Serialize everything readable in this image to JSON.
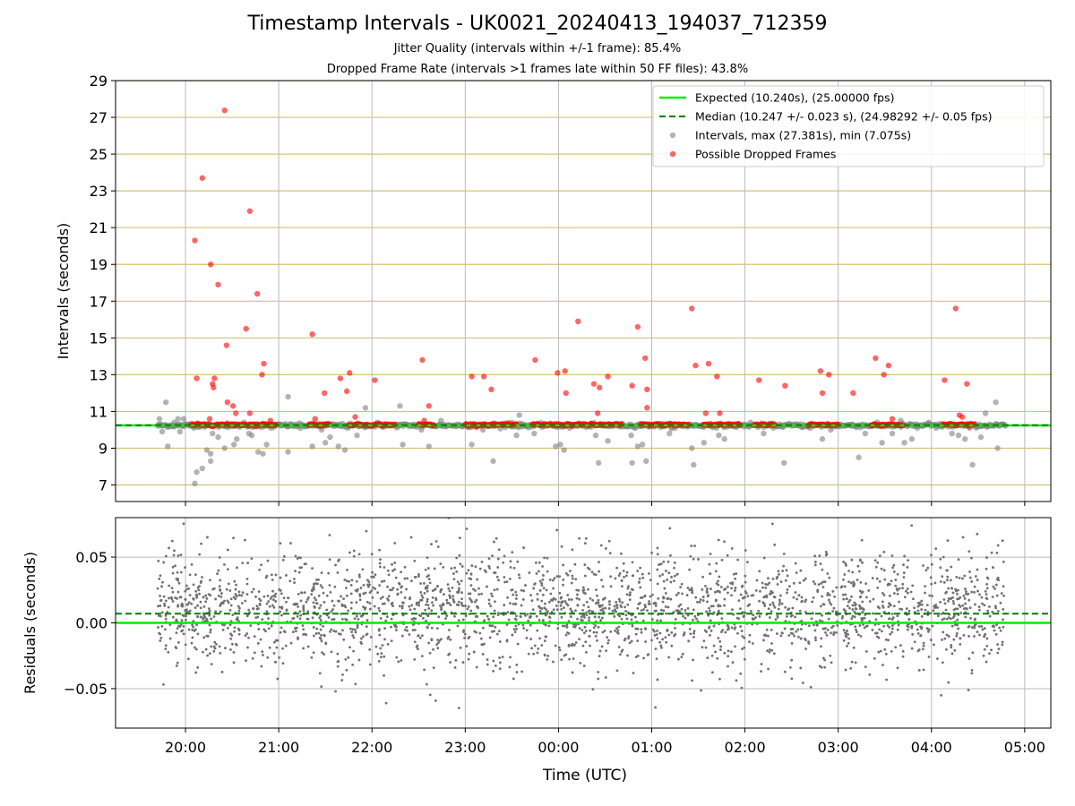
{
  "chart_data": [
    {
      "type": "scatter",
      "title": "Timestamp Intervals - UK0021_20240413_194037_712359",
      "subtitle_lines": [
        "Jitter Quality (intervals within +/-1 frame): 85.4%",
        "Dropped Frame Rate (intervals >1 frames late within 50 FF files): 43.8%"
      ],
      "xlabel": "",
      "ylabel": "Intervals (seconds)",
      "x_axis": {
        "kind": "time",
        "unit": "hours, continuous from 20:00 UTC (24 = 00:00 next day)",
        "range": [
          19.25,
          29.28
        ],
        "ticks": [
          20,
          21,
          22,
          23,
          24,
          25,
          26,
          27,
          28,
          29
        ],
        "tick_labels": [
          "20:00",
          "21:00",
          "22:00",
          "23:00",
          "00:00",
          "01:00",
          "02:00",
          "03:00",
          "04:00",
          "05:00"
        ]
      },
      "ylim": [
        6.1,
        29
      ],
      "y_ticks": [
        7,
        9,
        11,
        13,
        15,
        17,
        19,
        21,
        23,
        25,
        27,
        29
      ],
      "grid": {
        "horizontal": true,
        "horizontal_color": "#d4c27a",
        "vertical": true,
        "vertical_color": "#bbbbbb"
      },
      "legend": {
        "placement": "top-right",
        "entries": [
          "Expected (10.240s), (25.00000 fps)",
          "Median (10.247 +/- 0.023 s), (24.98292 +/- 0.05 fps)",
          "Intervals, max (27.381s), min (7.075s)",
          "Possible Dropped Frames"
        ]
      },
      "reference_lines": [
        {
          "name": "Expected (10.240s), (25.00000 fps)",
          "y": 10.24,
          "color": "#00ee00",
          "style": "solid"
        },
        {
          "name": "Median (10.247 +/- 0.023 s), (24.98292 +/- 0.05 fps)",
          "y": 10.247,
          "color": "#008000",
          "style": "dashed"
        }
      ],
      "series": [
        {
          "name": "Intervals, max (27.381s), min (7.075s)",
          "color": "#808080",
          "base_interval": 10.24,
          "x_range": [
            19.7,
            28.8
          ],
          "outliers": [
            [
              19.72,
              10.6
            ],
            [
              19.75,
              9.9
            ],
            [
              19.79,
              11.5
            ],
            [
              19.81,
              9.1
            ],
            [
              19.88,
              10.4
            ],
            [
              19.92,
              10.6
            ],
            [
              19.94,
              9.9
            ],
            [
              19.98,
              10.6
            ],
            [
              20.08,
              10.3
            ],
            [
              20.1,
              7.08
            ],
            [
              20.12,
              7.7
            ],
            [
              20.18,
              7.9
            ],
            [
              20.23,
              8.9
            ],
            [
              20.27,
              8.3
            ],
            [
              20.27,
              8.7
            ],
            [
              20.29,
              9.8
            ],
            [
              20.35,
              9.6
            ],
            [
              20.42,
              9.0
            ],
            [
              20.52,
              9.2
            ],
            [
              20.55,
              9.5
            ],
            [
              20.63,
              10.4
            ],
            [
              20.68,
              9.8
            ],
            [
              20.71,
              9.7
            ],
            [
              20.78,
              8.8
            ],
            [
              20.83,
              8.7
            ],
            [
              20.87,
              9.2
            ],
            [
              20.92,
              10.1
            ],
            [
              21.02,
              10.3
            ],
            [
              21.1,
              11.8
            ],
            [
              21.1,
              8.8
            ],
            [
              21.23,
              10.1
            ],
            [
              21.36,
              9.1
            ],
            [
              21.46,
              10.0
            ],
            [
              21.5,
              9.3
            ],
            [
              21.55,
              9.6
            ],
            [
              21.64,
              9.1
            ],
            [
              21.71,
              8.9
            ],
            [
              21.74,
              10.1
            ],
            [
              21.84,
              9.7
            ],
            [
              21.93,
              11.2
            ],
            [
              22.06,
              10.4
            ],
            [
              22.3,
              11.3
            ],
            [
              22.33,
              9.2
            ],
            [
              22.53,
              10.0
            ],
            [
              22.61,
              9.1
            ],
            [
              22.74,
              10.5
            ],
            [
              23.07,
              9.2
            ],
            [
              23.19,
              10.0
            ],
            [
              23.3,
              8.3
            ],
            [
              23.5,
              10.4
            ],
            [
              23.55,
              9.7
            ],
            [
              23.58,
              10.8
            ],
            [
              23.74,
              9.8
            ],
            [
              23.97,
              9.1
            ],
            [
              24.02,
              9.2
            ],
            [
              24.06,
              8.9
            ],
            [
              24.12,
              10.1
            ],
            [
              24.4,
              9.7
            ],
            [
              24.43,
              8.2
            ],
            [
              24.53,
              9.4
            ],
            [
              24.78,
              9.7
            ],
            [
              24.79,
              8.2
            ],
            [
              24.85,
              9.1
            ],
            [
              24.9,
              9.2
            ],
            [
              24.94,
              8.3
            ],
            [
              25.19,
              9.8
            ],
            [
              25.25,
              10.1
            ],
            [
              25.43,
              9.0
            ],
            [
              25.45,
              8.1
            ],
            [
              25.56,
              9.3
            ],
            [
              25.72,
              9.7
            ],
            [
              25.78,
              9.5
            ],
            [
              26.06,
              10.4
            ],
            [
              26.2,
              9.8
            ],
            [
              26.42,
              8.2
            ],
            [
              26.7,
              10.1
            ],
            [
              26.83,
              9.5
            ],
            [
              26.92,
              10.0
            ],
            [
              27.15,
              10.3
            ],
            [
              27.22,
              8.5
            ],
            [
              27.29,
              9.8
            ],
            [
              27.47,
              9.3
            ],
            [
              27.58,
              9.8
            ],
            [
              27.67,
              10.5
            ],
            [
              27.71,
              9.3
            ],
            [
              27.79,
              9.5
            ],
            [
              27.85,
              10.1
            ],
            [
              27.97,
              10.4
            ],
            [
              28.05,
              10.1
            ],
            [
              28.22,
              9.8
            ],
            [
              28.29,
              9.7
            ],
            [
              28.36,
              9.5
            ],
            [
              28.41,
              10.1
            ],
            [
              28.44,
              8.1
            ],
            [
              28.53,
              9.6
            ],
            [
              28.58,
              10.9
            ],
            [
              28.69,
              11.5
            ],
            [
              28.71,
              9.0
            ],
            [
              28.76,
              10.3
            ]
          ]
        },
        {
          "name": "Possible Dropped Frames",
          "color": "#ff0000",
          "base_interval": 10.28,
          "clusters": [
            [
              20.06,
              20.98
            ],
            [
              21.32,
              21.55
            ],
            [
              21.75,
              22.25
            ],
            [
              22.5,
              22.67
            ],
            [
              23.0,
              23.55
            ],
            [
              23.72,
              24.68
            ],
            [
              24.88,
              25.4
            ],
            [
              25.55,
              25.95
            ],
            [
              26.1,
              26.32
            ],
            [
              26.68,
              27.0
            ],
            [
              27.35,
              27.7
            ],
            [
              28.12,
              28.47
            ]
          ],
          "outliers": [
            [
              20.1,
              20.3
            ],
            [
              20.12,
              12.8
            ],
            [
              20.18,
              23.7
            ],
            [
              20.26,
              10.6
            ],
            [
              20.27,
              19.0
            ],
            [
              20.29,
              12.5
            ],
            [
              20.3,
              12.3
            ],
            [
              20.31,
              12.8
            ],
            [
              20.35,
              17.9
            ],
            [
              20.42,
              27.38
            ],
            [
              20.44,
              14.6
            ],
            [
              20.45,
              11.5
            ],
            [
              20.51,
              11.3
            ],
            [
              20.54,
              10.9
            ],
            [
              20.65,
              15.5
            ],
            [
              20.69,
              10.9
            ],
            [
              20.69,
              21.9
            ],
            [
              20.77,
              17.4
            ],
            [
              20.82,
              13.0
            ],
            [
              20.84,
              13.6
            ],
            [
              20.91,
              10.5
            ],
            [
              21.36,
              15.2
            ],
            [
              21.39,
              10.6
            ],
            [
              21.49,
              12.0
            ],
            [
              21.66,
              12.8
            ],
            [
              21.73,
              12.1
            ],
            [
              21.76,
              13.1
            ],
            [
              21.82,
              10.7
            ],
            [
              22.03,
              12.7
            ],
            [
              22.54,
              13.8
            ],
            [
              22.56,
              10.5
            ],
            [
              22.61,
              11.3
            ],
            [
              23.07,
              12.9
            ],
            [
              23.2,
              12.9
            ],
            [
              23.28,
              12.2
            ],
            [
              23.75,
              13.8
            ],
            [
              23.99,
              13.1
            ],
            [
              24.07,
              13.2
            ],
            [
              24.08,
              12.0
            ],
            [
              24.21,
              15.9
            ],
            [
              24.38,
              12.5
            ],
            [
              24.42,
              10.9
            ],
            [
              24.44,
              12.3
            ],
            [
              24.53,
              12.9
            ],
            [
              24.79,
              12.4
            ],
            [
              24.85,
              15.6
            ],
            [
              24.93,
              13.9
            ],
            [
              24.95,
              12.2
            ],
            [
              24.95,
              11.2
            ],
            [
              25.43,
              16.6
            ],
            [
              25.47,
              13.5
            ],
            [
              25.58,
              10.9
            ],
            [
              25.61,
              13.6
            ],
            [
              25.7,
              12.9
            ],
            [
              25.73,
              10.9
            ],
            [
              26.15,
              12.7
            ],
            [
              26.43,
              12.4
            ],
            [
              26.81,
              13.2
            ],
            [
              26.83,
              12.0
            ],
            [
              26.9,
              13.0
            ],
            [
              27.16,
              12.0
            ],
            [
              27.4,
              13.9
            ],
            [
              27.49,
              13.0
            ],
            [
              27.54,
              13.5
            ],
            [
              27.58,
              10.6
            ],
            [
              28.14,
              12.7
            ],
            [
              28.26,
              16.6
            ],
            [
              28.3,
              10.8
            ],
            [
              28.33,
              10.7
            ],
            [
              28.38,
              12.5
            ]
          ]
        }
      ]
    },
    {
      "type": "scatter",
      "title": "",
      "xlabel": "Time (UTC)",
      "ylabel": "Residuals (seconds)",
      "x_axis": {
        "kind": "time",
        "unit": "hours, continuous from 20:00 UTC (24 = 00:00 next day)",
        "range": [
          19.25,
          29.28
        ],
        "ticks": [
          20,
          21,
          22,
          23,
          24,
          25,
          26,
          27,
          28,
          29
        ],
        "tick_labels": [
          "20:00",
          "21:00",
          "22:00",
          "23:00",
          "00:00",
          "01:00",
          "02:00",
          "03:00",
          "04:00",
          "05:00"
        ]
      },
      "ylim": [
        -0.08,
        0.08
      ],
      "y_ticks": [
        -0.05,
        0.0,
        0.05
      ],
      "y_tick_labels": [
        "−0.05",
        "0.00",
        "0.05"
      ],
      "grid": {
        "horizontal": true,
        "vertical": true,
        "color": "#bbbbbb"
      },
      "reference_lines": [
        {
          "name": "Expected",
          "y": 0.0,
          "color": "#00ee00",
          "style": "solid"
        },
        {
          "name": "Median",
          "y": 0.007,
          "color": "#008000",
          "style": "dashed"
        }
      ],
      "series": [
        {
          "name": "Residuals",
          "color": "#707070",
          "x_range": [
            19.7,
            28.8
          ],
          "center": 0.01,
          "spread": 0.022,
          "point_count": 2600
        }
      ]
    }
  ]
}
